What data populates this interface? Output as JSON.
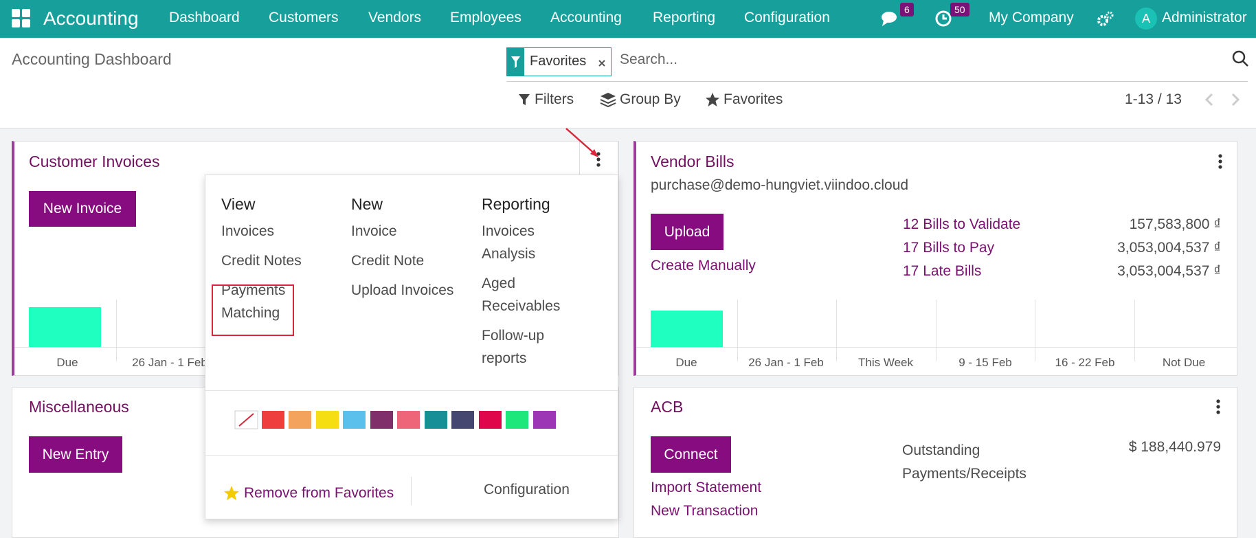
{
  "navbar": {
    "app": "Accounting",
    "menu": [
      "Dashboard",
      "Customers",
      "Vendors",
      "Employees",
      "Accounting",
      "Reporting",
      "Configuration"
    ],
    "chat_count": 6,
    "activity_count": 50,
    "company": "My Company",
    "avatar": "A",
    "user": "Administrator"
  },
  "control_panel": {
    "title": "Accounting Dashboard",
    "facet": "Favorites",
    "search_placeholder": "Search...",
    "filters": "Filters",
    "group_by": "Group By",
    "favorites": "Favorites",
    "pager": "1-13 / 13"
  },
  "customer_invoices": {
    "title": "Customer Invoices",
    "button": "New Invoice",
    "chart_labels": [
      "Due",
      "26 Jan - 1 Feb"
    ]
  },
  "dropdown": {
    "columns": [
      {
        "title": "View",
        "items": [
          "Invoices",
          "Credit Notes",
          "Payments Matching"
        ]
      },
      {
        "title": "New",
        "items": [
          "Invoice",
          "Credit Note",
          "Upload Invoices"
        ]
      },
      {
        "title": "Reporting",
        "items": [
          "Invoices Analysis",
          "Aged Receivables",
          "Follow-up reports"
        ]
      }
    ],
    "remove_favorite": "Remove from Favorites",
    "configuration": "Configuration"
  },
  "vendor_bills": {
    "title": "Vendor Bills",
    "email": "purchase@demo-hungviet.viindoo.cloud",
    "button": "Upload",
    "link": "Create Manually",
    "stats": [
      {
        "label": "12 Bills to Validate",
        "value": "157,583,800 ₫"
      },
      {
        "label": "17 Bills to Pay",
        "value": "3,053,004,537 ₫"
      },
      {
        "label": "17 Late Bills",
        "value": "3,053,004,537 ₫"
      }
    ],
    "chart_labels": [
      "Due",
      "26 Jan - 1 Feb",
      "This Week",
      "9 - 15 Feb",
      "16 - 22 Feb",
      "Not Due"
    ]
  },
  "miscellaneous": {
    "title": "Miscellaneous",
    "button": "New Entry"
  },
  "acb": {
    "title": "ACB",
    "button": "Connect",
    "links": [
      "Import Statement",
      "New Transaction"
    ],
    "balance_label": "Outstanding Payments/Receipts",
    "balance": "$ 188,440.979"
  }
}
